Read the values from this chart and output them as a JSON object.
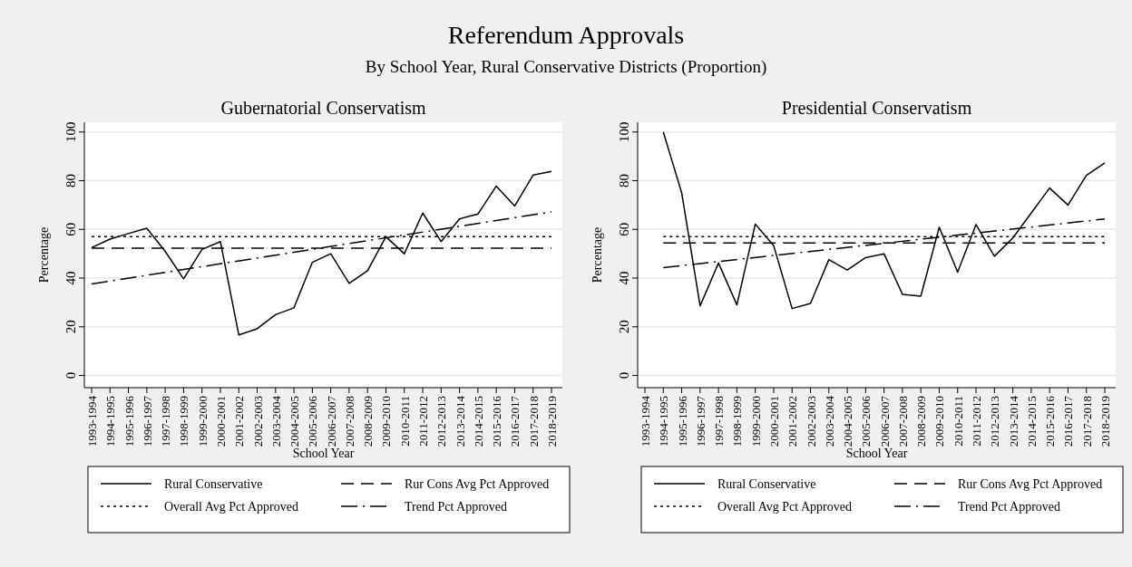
{
  "chart_data": [
    {
      "type": "other",
      "title": "Referendum Approvals",
      "subtitle": "By School Year, Rural Conservative Districts (Proportion)"
    },
    {
      "type": "line",
      "title": "Gubernatorial Conservatism",
      "xlabel": "School Year",
      "ylabel": "Percentage",
      "categories": [
        "1993-1994",
        "1994-1995",
        "1995-1996",
        "1996-1997",
        "1997-1998",
        "1998-1999",
        "1999-2000",
        "2000-2001",
        "2001-2002",
        "2002-2003",
        "2003-2004",
        "2004-2005",
        "2005-2006",
        "2006-2007",
        "2007-2008",
        "2008-2009",
        "2009-2010",
        "2010-2011",
        "2011-2012",
        "2012-2013",
        "2013-2014",
        "2014-2015",
        "2015-2016",
        "2016-2017",
        "2017-2018",
        "2018-2019"
      ],
      "ylim": [
        -5,
        104
      ],
      "yticks": [
        0,
        20,
        40,
        60,
        80,
        100
      ],
      "grid": "y",
      "legend": "bottom",
      "marker": "none",
      "series": [
        {
          "name": "Rural Conservative",
          "color": "#000000",
          "line_style": "solid",
          "values": [
            52.5,
            56,
            58.3,
            60.5,
            51,
            39.7,
            51.8,
            55,
            16.7,
            19.2,
            25,
            27.8,
            46.5,
            50,
            37.8,
            43,
            57,
            50,
            66.7,
            55,
            64.3,
            66.3,
            77.8,
            69.6,
            82.3,
            83.8
          ]
        },
        {
          "name": "Rur Cons Avg Pct Approved",
          "color": "#000000",
          "line_style": "dashed",
          "x": [
            "1993-1994",
            "2018-2019"
          ],
          "values": [
            52.3,
            52.3
          ]
        },
        {
          "name": "Overall Avg Pct Approved",
          "color": "#000000",
          "line_style": "dotted",
          "x": [
            "1993-1994",
            "2018-2019"
          ],
          "values": [
            57,
            57
          ]
        },
        {
          "name": "Trend Pct Approved",
          "color": "#000000",
          "line_style": "dashdot",
          "x": [
            "1993-1994",
            "2018-2019"
          ],
          "values": [
            37.6,
            67.2
          ]
        }
      ]
    },
    {
      "type": "line",
      "title": "Presidential Conservatism",
      "xlabel": "School Year",
      "ylabel": "Percentage",
      "categories": [
        "1993-1994",
        "1994-1995",
        "1995-1996",
        "1996-1997",
        "1997-1998",
        "1998-1999",
        "1999-2000",
        "2000-2001",
        "2001-2002",
        "2002-2003",
        "2003-2004",
        "2004-2005",
        "2005-2006",
        "2006-2007",
        "2007-2008",
        "2008-2009",
        "2009-2010",
        "2010-2011",
        "2011-2012",
        "2012-2013",
        "2013-2014",
        "2014-2015",
        "2015-2016",
        "2016-2017",
        "2017-2018",
        "2018-2019"
      ],
      "ylim": [
        -5,
        104
      ],
      "yticks": [
        0,
        20,
        40,
        60,
        80,
        100
      ],
      "grid": "y",
      "legend": "bottom",
      "marker": "none",
      "series": [
        {
          "name": "Rural Conservative",
          "color": "#000000",
          "line_style": "solid",
          "values": [
            null,
            100,
            75,
            28.6,
            46.2,
            29,
            62.2,
            53.3,
            27.5,
            29.6,
            47.6,
            43.3,
            48.4,
            50,
            33.3,
            32.6,
            60.9,
            42.4,
            62,
            49,
            56.5,
            66.7,
            77,
            70,
            82.2,
            87.3
          ]
        },
        {
          "name": "Rur Cons Avg Pct Approved",
          "color": "#000000",
          "line_style": "dashed",
          "x": [
            "1994-1995",
            "2018-2019"
          ],
          "values": [
            54.4,
            54.4
          ]
        },
        {
          "name": "Overall Avg Pct Approved",
          "color": "#000000",
          "line_style": "dotted",
          "x": [
            "1994-1995",
            "2018-2019"
          ],
          "values": [
            57,
            57
          ]
        },
        {
          "name": "Trend Pct Approved",
          "color": "#000000",
          "line_style": "dashdot",
          "x": [
            "1994-1995",
            "2018-2019"
          ],
          "values": [
            44.3,
            64.3
          ]
        }
      ]
    }
  ]
}
